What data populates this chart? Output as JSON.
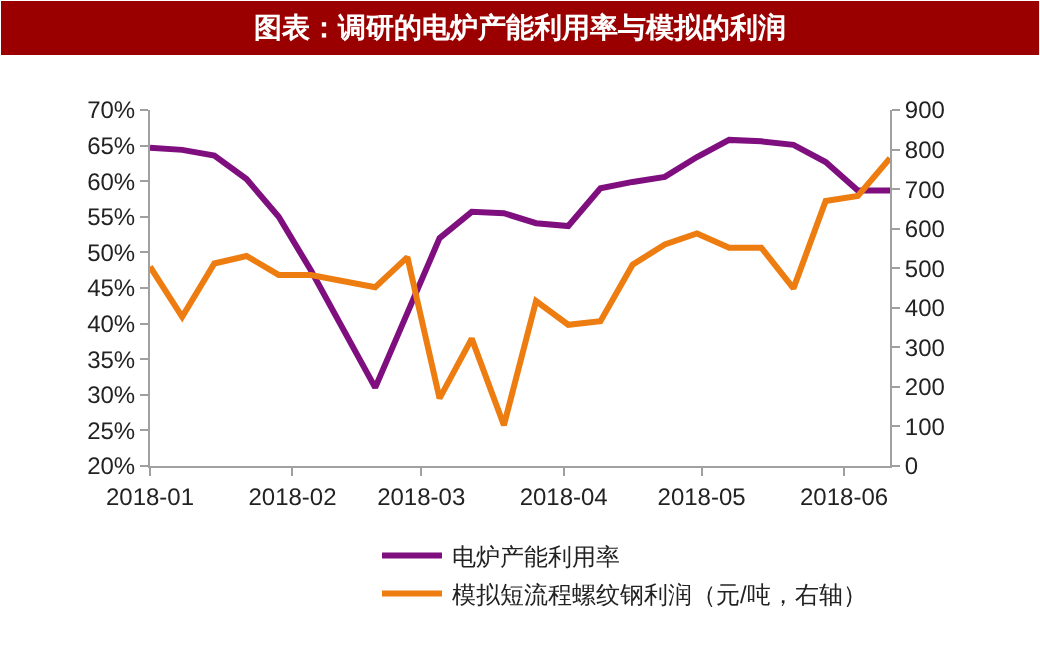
{
  "chart_data": {
    "type": "line",
    "title": "图表：调研的电炉产能利用率与模拟的利润",
    "xlim": [
      "2018-01-01",
      "2018-06-11"
    ],
    "xticks": [
      "2018-01",
      "2018-02",
      "2018-03",
      "2018-04",
      "2018-05",
      "2018-06"
    ],
    "ylim": [
      20,
      70
    ],
    "yticks": [
      {
        "value": 20,
        "label": "20%"
      },
      {
        "value": 25,
        "label": "25%"
      },
      {
        "value": 30,
        "label": "30%"
      },
      {
        "value": 35,
        "label": "35%"
      },
      {
        "value": 40,
        "label": "40%"
      },
      {
        "value": 45,
        "label": "45%"
      },
      {
        "value": 50,
        "label": "50%"
      },
      {
        "value": 55,
        "label": "55%"
      },
      {
        "value": 60,
        "label": "60%"
      },
      {
        "value": 65,
        "label": "65%"
      },
      {
        "value": 70,
        "label": "70%"
      }
    ],
    "y2lim": [
      0,
      900
    ],
    "y2ticks": [
      0,
      100,
      200,
      300,
      400,
      500,
      600,
      700,
      800,
      900
    ],
    "legend": "bottom",
    "marker": "none",
    "line_style": "solid",
    "series": [
      {
        "name": "电炉产能利用率",
        "color": "#7f0f7e",
        "x": [
          "2018-01-01",
          "2018-01-08",
          "2018-01-15",
          "2018-01-22",
          "2018-01-29",
          "2018-02-05",
          "2018-02-19",
          "2018-02-26",
          "2018-03-05",
          "2018-03-12",
          "2018-03-19",
          "2018-03-26",
          "2018-04-02",
          "2018-04-09",
          "2018-04-16",
          "2018-04-23",
          "2018-04-30",
          "2018-05-07",
          "2018-05-14",
          "2018-05-21",
          "2018-05-28",
          "2018-06-04",
          "2018-06-11"
        ],
        "values": [
          64.7,
          64.4,
          63.6,
          60.3,
          55.0,
          47.5,
          31.0,
          41.5,
          52.0,
          55.7,
          55.5,
          54.1,
          53.7,
          59.0,
          59.9,
          60.6,
          63.4,
          65.8,
          65.6,
          65.1,
          62.7,
          58.7,
          58.7
        ]
      },
      {
        "name": "模拟短流程螺纹钢利润（元/吨，右轴）",
        "color": "#ed7d10",
        "axis": "y2",
        "x": [
          "2018-01-01",
          "2018-01-08",
          "2018-01-15",
          "2018-01-22",
          "2018-01-29",
          "2018-02-05",
          "2018-02-19",
          "2018-02-26",
          "2018-03-05",
          "2018-03-12",
          "2018-03-19",
          "2018-03-26",
          "2018-04-02",
          "2018-04-09",
          "2018-04-16",
          "2018-04-23",
          "2018-04-30",
          "2018-05-07",
          "2018-05-14",
          "2018-05-21",
          "2018-05-28",
          "2018-06-04",
          "2018-06-11"
        ],
        "values": [
          504,
          377,
          512,
          531,
          483,
          483,
          452,
          528,
          171,
          322,
          103,
          417,
          357,
          366,
          509,
          560,
          588,
          552,
          552,
          449,
          670,
          683,
          778
        ]
      }
    ]
  }
}
